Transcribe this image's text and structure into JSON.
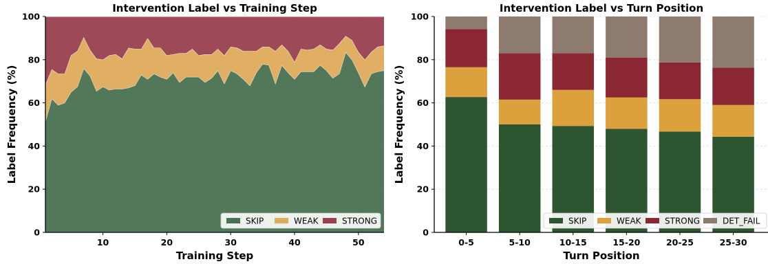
{
  "chart_data": [
    {
      "type": "area",
      "stacked": true,
      "title": "Intervention Label vs Training Step",
      "xlabel": "Training Step",
      "ylabel": "Label Frequency (%)",
      "xlim": [
        1,
        54
      ],
      "ylim": [
        0,
        100
      ],
      "xticks": [
        10,
        20,
        30,
        40,
        50
      ],
      "yticks": [
        0,
        20,
        40,
        60,
        80,
        100
      ],
      "grid": true,
      "legend_position": "lower-right",
      "x": [
        1,
        2,
        3,
        4,
        5,
        6,
        7,
        8,
        9,
        10,
        11,
        12,
        13,
        14,
        15,
        16,
        17,
        18,
        19,
        20,
        21,
        22,
        23,
        24,
        25,
        26,
        27,
        28,
        29,
        30,
        31,
        32,
        33,
        34,
        35,
        36,
        37,
        38,
        39,
        40,
        41,
        42,
        43,
        44,
        45,
        46,
        47,
        48,
        49,
        50,
        51,
        52,
        53,
        54
      ],
      "series": [
        {
          "name": "SKIP",
          "color": "#4a7150",
          "values": [
            51.5,
            62,
            59,
            60,
            65,
            67.5,
            76,
            72.5,
            65.5,
            67.5,
            66,
            66.5,
            66.5,
            67,
            68,
            73,
            71,
            73.5,
            72,
            71,
            74,
            69.5,
            72,
            72,
            72,
            69.5,
            71.5,
            75,
            69,
            75,
            73.5,
            71,
            68,
            74,
            78,
            77.5,
            69,
            77.5,
            74,
            71,
            74.5,
            74.5,
            74.5,
            77.5,
            75,
            71.5,
            73.5,
            83.5,
            80,
            74,
            67.5,
            73.5,
            74.5,
            75
          ]
        },
        {
          "name": "WEAK",
          "color": "#deab5b",
          "values": [
            17,
            13.5,
            14.5,
            13.5,
            17,
            16.5,
            14.5,
            12,
            15,
            12.5,
            16,
            16,
            14,
            18.5,
            17,
            12,
            19,
            12,
            13.5,
            11,
            8.5,
            13.5,
            11,
            13,
            10,
            13,
            11,
            10,
            13,
            11,
            12,
            13,
            16,
            10,
            8,
            8.5,
            15,
            9.5,
            10,
            8,
            10.5,
            10,
            10.5,
            9.5,
            10,
            13,
            14,
            7.5,
            9,
            9.5,
            12.5,
            10,
            11.5,
            11.5
          ]
        },
        {
          "name": "STRONG",
          "color": "#993f4e",
          "values": [
            31.5,
            24.5,
            26.5,
            26.5,
            18,
            16,
            9.5,
            15.5,
            19.5,
            20,
            18,
            17.5,
            19.5,
            14.5,
            15,
            15,
            10,
            14.5,
            14.5,
            18,
            17.5,
            17,
            17,
            15,
            18,
            17.5,
            17.5,
            15,
            18,
            14,
            14.5,
            16,
            16,
            16,
            14,
            14,
            16,
            13,
            16,
            21,
            15,
            15.5,
            15,
            13,
            15,
            15.5,
            12.5,
            9,
            11,
            16.5,
            20,
            16.5,
            14,
            13.5
          ]
        }
      ]
    },
    {
      "type": "bar",
      "stacked": true,
      "title": "Intervention Label vs Turn Position",
      "xlabel": "Turn Position",
      "ylabel": "Label Frequency (%)",
      "ylim": [
        0,
        100
      ],
      "yticks": [
        0,
        20,
        40,
        60,
        80,
        100
      ],
      "grid": true,
      "legend_position": "lower-right",
      "categories": [
        "0-5",
        "5-10",
        "10-15",
        "15-20",
        "20-25",
        "25-30"
      ],
      "series": [
        {
          "name": "SKIP",
          "color": "#2d5530",
          "values": [
            62.7,
            50.0,
            49.3,
            48.0,
            46.7,
            44.3
          ]
        },
        {
          "name": "WEAK",
          "color": "#dca03d",
          "values": [
            13.8,
            11.5,
            16.7,
            14.5,
            15.0,
            14.7
          ]
        },
        {
          "name": "STRONG",
          "color": "#8b2633",
          "values": [
            17.7,
            21.5,
            17.0,
            18.5,
            17.0,
            17.3
          ]
        },
        {
          "name": "DET_FAIL",
          "color": "#8d7b6f",
          "values": [
            5.8,
            17.0,
            17.0,
            19.0,
            21.3,
            23.7
          ]
        }
      ]
    }
  ]
}
